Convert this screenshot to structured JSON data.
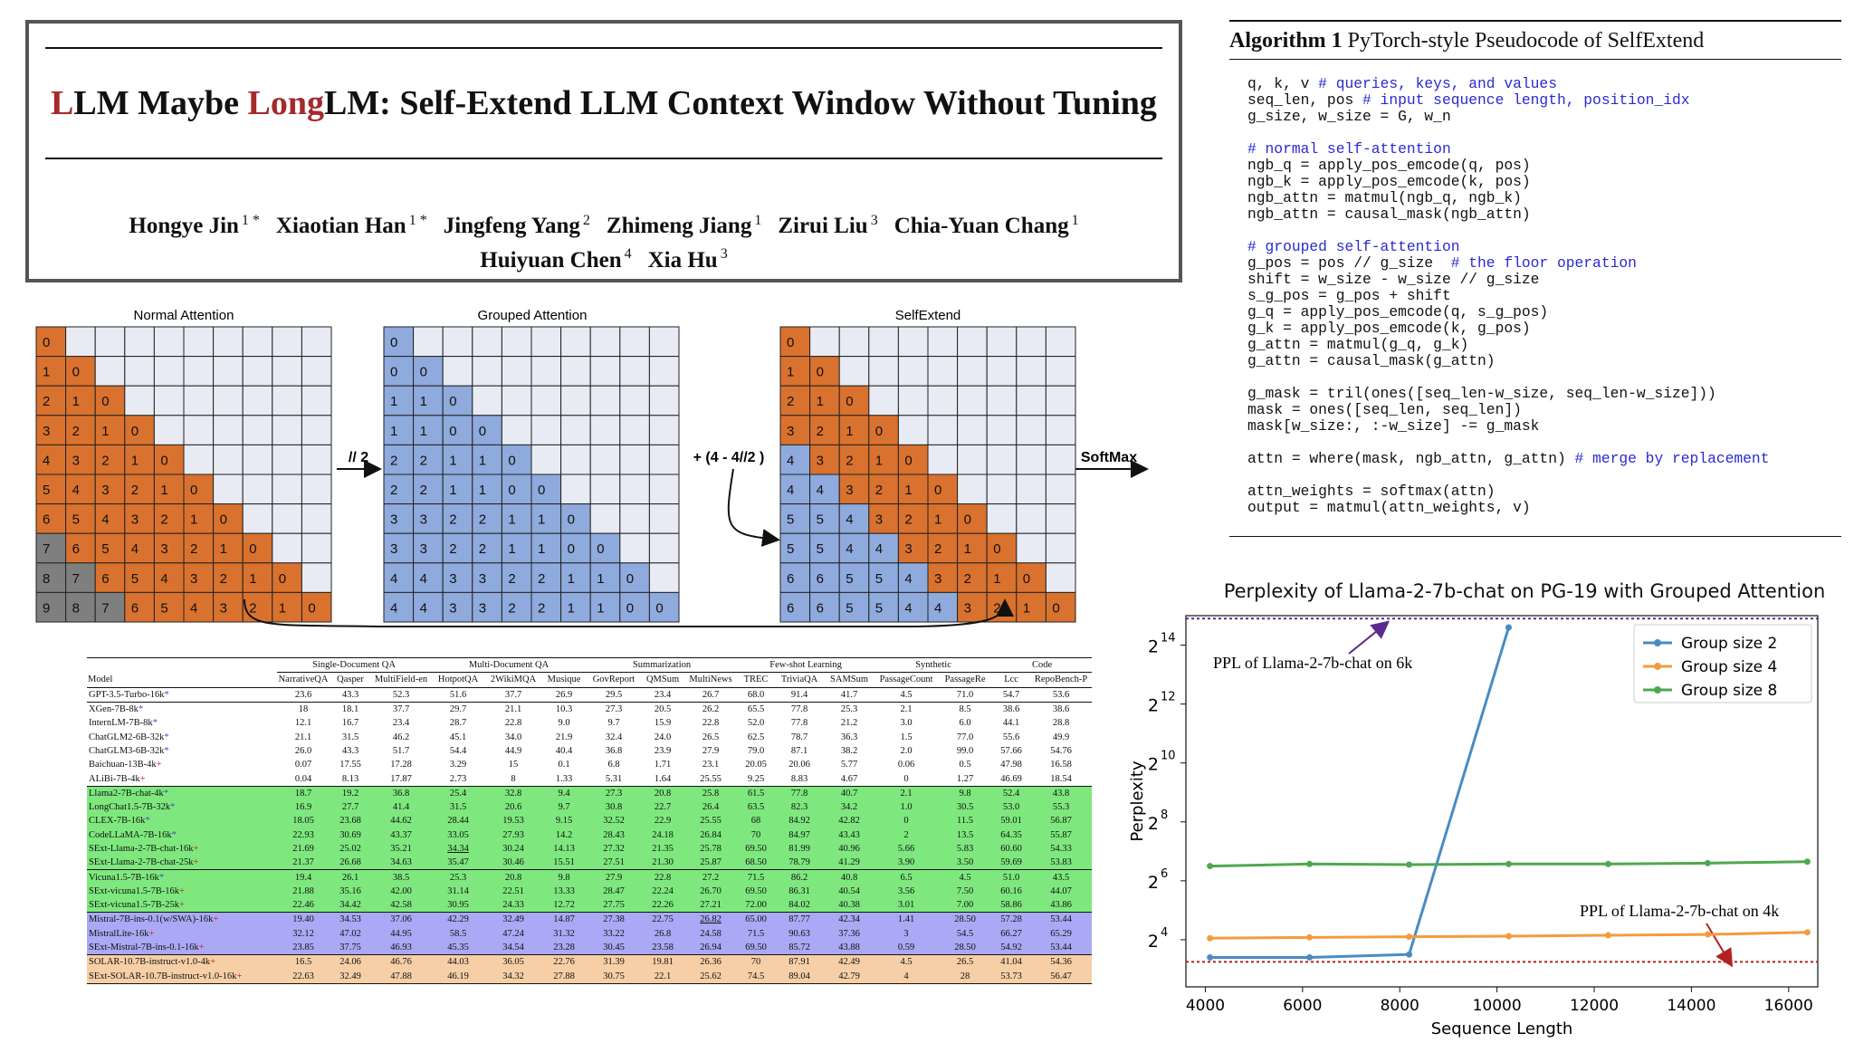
{
  "title": {
    "part1_red": "L",
    "part1": "LM Maybe ",
    "part2_red": "Long",
    "part2": "LM: Self-Extend LLM Context Window Without Tuning"
  },
  "authors": [
    {
      "name": "Hongye Jin",
      "aff": "1 *"
    },
    {
      "name": "Xiaotian Han",
      "aff": "1 *"
    },
    {
      "name": "Jingfeng Yang",
      "aff": "2"
    },
    {
      "name": "Zhimeng Jiang",
      "aff": "1"
    },
    {
      "name": "Zirui Liu",
      "aff": "3"
    },
    {
      "name": "Chia-Yuan Chang",
      "aff": "1"
    },
    {
      "name": "Huiyuan Chen",
      "aff": "4"
    },
    {
      "name": "Xia Hu",
      "aff": "3"
    }
  ],
  "attention": {
    "normal_title": "Normal Attention",
    "grouped_title": "Grouped Attention",
    "selfextend_title": "SelfExtend",
    "op_group": "// 2",
    "op_shift": "+ (4 - 4//2 )",
    "op_softmax": "SoftMax",
    "normal_matrix": [
      [
        "0"
      ],
      [
        "1",
        "0"
      ],
      [
        "2",
        "1",
        "0"
      ],
      [
        "3",
        "2",
        "1",
        "0"
      ],
      [
        "4",
        "3",
        "2",
        "1",
        "0"
      ],
      [
        "5",
        "4",
        "3",
        "2",
        "1",
        "0"
      ],
      [
        "6",
        "5",
        "4",
        "3",
        "2",
        "1",
        "0"
      ],
      [
        "7",
        "6",
        "5",
        "4",
        "3",
        "2",
        "1",
        "0"
      ],
      [
        "8",
        "7",
        "6",
        "5",
        "4",
        "3",
        "2",
        "1",
        "0"
      ],
      [
        "9",
        "8",
        "7",
        "6",
        "5",
        "4",
        "3",
        "2",
        "1",
        "0"
      ]
    ],
    "grouped_matrix": [
      [
        "0"
      ],
      [
        "0",
        "0"
      ],
      [
        "1",
        "1",
        "0"
      ],
      [
        "1",
        "1",
        "0",
        "0"
      ],
      [
        "2",
        "2",
        "1",
        "1",
        "0"
      ],
      [
        "2",
        "2",
        "1",
        "1",
        "0",
        "0"
      ],
      [
        "3",
        "3",
        "2",
        "2",
        "1",
        "1",
        "0"
      ],
      [
        "3",
        "3",
        "2",
        "2",
        "1",
        "1",
        "0",
        "0"
      ],
      [
        "4",
        "4",
        "3",
        "3",
        "2",
        "2",
        "1",
        "1",
        "0"
      ],
      [
        "4",
        "4",
        "3",
        "3",
        "2",
        "2",
        "1",
        "1",
        "0",
        "0"
      ]
    ],
    "selfextend_matrix": [
      [
        "0"
      ],
      [
        "1",
        "0"
      ],
      [
        "2",
        "1",
        "0"
      ],
      [
        "3",
        "2",
        "1",
        "0"
      ],
      [
        "4",
        "3",
        "2",
        "1",
        "0"
      ],
      [
        "4",
        "4",
        "3",
        "2",
        "1",
        "0"
      ],
      [
        "5",
        "5",
        "4",
        "3",
        "2",
        "1",
        "0"
      ],
      [
        "5",
        "5",
        "4",
        "4",
        "3",
        "2",
        "1",
        "0"
      ],
      [
        "6",
        "6",
        "5",
        "5",
        "4",
        "3",
        "2",
        "1",
        "0"
      ],
      [
        "6",
        "6",
        "5",
        "5",
        "4",
        "4",
        "3",
        "2",
        "1",
        "0"
      ]
    ],
    "colors": {
      "orange": "#d9722e",
      "blue": "#8faadc",
      "dark": "#7f7f7f",
      "empty": "#e8ebf4"
    }
  },
  "table": {
    "group_headers": [
      "Single-Document QA",
      "Multi-Document QA",
      "Summarization",
      "Few-shot Learning",
      "Synthetic",
      "Code"
    ],
    "columns": [
      "Model",
      "NarrativeQA",
      "Qasper",
      "MultiField-en",
      "HotpotQA",
      "2WikiMQA",
      "Musique",
      "GovReport",
      "QMSum",
      "MultiNews",
      "TREC",
      "TriviaQA",
      "SAMSum",
      "PassageCount",
      "PassageRe",
      "Lcc",
      "RepoBench-P"
    ],
    "rows": [
      {
        "model": "GPT-3.5-Turbo-16k",
        "mark": "*",
        "bg": "#ffffff",
        "sep": true,
        "cells": [
          "23.6",
          "43.3",
          "52.3",
          "51.6",
          "37.7",
          "26.9",
          "29.5",
          "23.4",
          "26.7",
          "68.0",
          "91.4",
          "41.7",
          "4.5",
          "71.0",
          "54.7",
          "53.6"
        ]
      },
      {
        "model": "XGen-7B-8k",
        "mark": "*",
        "bg": "#ffffff",
        "sep": true,
        "cells": [
          "18",
          "18.1",
          "37.7",
          "29.7",
          "21.1",
          "10.3",
          "27.3",
          "20.5",
          "26.2",
          "65.5",
          "77.8",
          "25.3",
          "2.1",
          "8.5",
          "38.6",
          "38.6"
        ]
      },
      {
        "model": "InternLM-7B-8k",
        "mark": "*",
        "bg": "#ffffff",
        "cells": [
          "12.1",
          "16.7",
          "23.4",
          "28.7",
          "22.8",
          "9.0",
          "9.7",
          "15.9",
          "22.8",
          "52.0",
          "77.8",
          "21.2",
          "3.0",
          "6.0",
          "44.1",
          "28.8"
        ]
      },
      {
        "model": "ChatGLM2-6B-32k",
        "mark": "*",
        "bg": "#ffffff",
        "cells": [
          "21.1",
          "31.5",
          "46.2",
          "45.1",
          "34.0",
          "21.9",
          "32.4",
          "24.0",
          "26.5",
          "62.5",
          "78.7",
          "36.3",
          "1.5",
          "77.0",
          "55.6",
          "49.9"
        ]
      },
      {
        "model": "ChatGLM3-6B-32k",
        "mark": "*",
        "bg": "#ffffff",
        "cells": [
          "26.0",
          "43.3",
          "51.7",
          "54.4",
          "44.9",
          "40.4",
          "36.8",
          "23.9",
          "27.9",
          "79.0",
          "87.1",
          "38.2",
          "2.0",
          "99.0",
          "57.66",
          "54.76"
        ]
      },
      {
        "model": "Baichuan-13B-4k",
        "mark": "+",
        "bg": "#ffffff",
        "cells": [
          "0.07",
          "17.55",
          "17.28",
          "3.29",
          "15",
          "0.1",
          "6.8",
          "1.71",
          "23.1",
          "20.05",
          "20.06",
          "5.77",
          "0.06",
          "0.5",
          "47.98",
          "16.58"
        ]
      },
      {
        "model": "ALiBi-7B-4k",
        "mark": "+",
        "bg": "#ffffff",
        "cells": [
          "0.04",
          "8.13",
          "17.87",
          "2.73",
          "8",
          "1.33",
          "5.31",
          "1.64",
          "25.55",
          "9.25",
          "8.83",
          "4.67",
          "0",
          "1.27",
          "46.69",
          "18.54"
        ]
      },
      {
        "model": "Llama2-7B-chat-4k",
        "mark": "*",
        "bg": "#7ee87e",
        "sep": true,
        "cells": [
          "18.7",
          "19.2",
          "36.8",
          "25.4",
          "32.8",
          "9.4",
          "27.3",
          "20.8",
          "25.8",
          "61.5",
          "77.8",
          "40.7",
          "2.1",
          "9.8",
          "52.4",
          "43.8"
        ]
      },
      {
        "model": "LongChat1.5-7B-32k",
        "mark": "*",
        "bg": "#7ee87e",
        "cells": [
          "16.9",
          "27.7",
          "41.4",
          "31.5",
          "20.6",
          "9.7",
          "30.8",
          "22.7",
          "26.4",
          "63.5",
          "82.3",
          "34.2",
          "1.0",
          "30.5",
          "53.0",
          "55.3"
        ]
      },
      {
        "model": "CLEX-7B-16k",
        "mark": "*",
        "bg": "#7ee87e",
        "cells": [
          "18.05",
          "23.68",
          "44.62",
          "28.44",
          "19.53",
          "9.15",
          "32.52",
          "22.9",
          "25.55",
          "68",
          "84.92",
          "42.82",
          "0",
          "11.5",
          "59.01",
          "56.87"
        ]
      },
      {
        "model": "CodeLLaMA-7B-16k",
        "mark": "*",
        "bg": "#7ee87e",
        "cells": [
          "22.93",
          "30.69",
          "43.37",
          "33.05",
          "27.93",
          "14.2",
          "28.43",
          "24.18",
          "26.84",
          "70",
          "84.97",
          "43.43",
          "2",
          "13.5",
          "64.35",
          "55.87"
        ]
      },
      {
        "model": "SExt-Llama-2-7B-chat-16k",
        "mark": "+",
        "bg": "#7ee87e",
        "cells": [
          "21.69",
          "25.02",
          "35.21",
          "34.34",
          "30.24",
          "14.13",
          "27.32",
          "21.35",
          "25.78",
          "69.50",
          "81.99",
          "40.96",
          "5.66",
          "5.83",
          "60.60",
          "54.33"
        ]
      },
      {
        "model": "SExt-Llama-2-7B-chat-25k",
        "mark": "+",
        "bg": "#7ee87e",
        "cells": [
          "21.37",
          "26.68",
          "34.63",
          "35.47",
          "30.46",
          "15.51",
          "27.51",
          "21.30",
          "25.87",
          "68.50",
          "78.79",
          "41.29",
          "3.90",
          "3.50",
          "59.69",
          "53.83"
        ]
      },
      {
        "model": "Vicuna1.5-7B-16k",
        "mark": "*",
        "bg": "#7ee87e",
        "sep": true,
        "cells": [
          "19.4",
          "26.1",
          "38.5",
          "25.3",
          "20.8",
          "9.8",
          "27.9",
          "22.8",
          "27.2",
          "71.5",
          "86.2",
          "40.8",
          "6.5",
          "4.5",
          "51.0",
          "43.5"
        ]
      },
      {
        "model": "SExt-vicuna1.5-7B-16k",
        "mark": "+",
        "bg": "#7ee87e",
        "cells": [
          "21.88",
          "35.16",
          "42.00",
          "31.14",
          "22.51",
          "13.33",
          "28.47",
          "22.24",
          "26.70",
          "69.50",
          "86.31",
          "40.54",
          "3.56",
          "7.50",
          "60.16",
          "44.07"
        ]
      },
      {
        "model": "SExt-vicuna1.5-7B-25k",
        "mark": "+",
        "bg": "#7ee87e",
        "cells": [
          "22.46",
          "34.42",
          "42.58",
          "30.95",
          "24.33",
          "12.72",
          "27.75",
          "22.26",
          "27.21",
          "72.00",
          "84.02",
          "40.38",
          "3.01",
          "7.00",
          "58.86",
          "43.86"
        ]
      },
      {
        "model": "Mistral-7B-ins-0.1(w/SWA)-16k",
        "mark": "+",
        "bg": "#a9a9f5",
        "sep": true,
        "cells": [
          "19.40",
          "34.53",
          "37.06",
          "42.29",
          "32.49",
          "14.87",
          "27.38",
          "22.75",
          "26.82",
          "65.00",
          "87.77",
          "42.34",
          "1.41",
          "28.50",
          "57.28",
          "53.44"
        ]
      },
      {
        "model": "MistralLite-16k",
        "mark": "+",
        "bg": "#a9a9f5",
        "cells": [
          "32.12",
          "47.02",
          "44.95",
          "58.5",
          "47.24",
          "31.32",
          "33.22",
          "26.8",
          "24.58",
          "71.5",
          "90.63",
          "37.36",
          "3",
          "54.5",
          "66.27",
          "65.29"
        ]
      },
      {
        "model": "SExt-Mistral-7B-ins-0.1-16k",
        "mark": "+",
        "bg": "#a9a9f5",
        "cells": [
          "23.85",
          "37.75",
          "46.93",
          "45.35",
          "34.54",
          "23.28",
          "30.45",
          "23.58",
          "26.94",
          "69.50",
          "85.72",
          "43.88",
          "0.59",
          "28.50",
          "54.92",
          "53.44"
        ]
      },
      {
        "model": "SOLAR-10.7B-instruct-v1.0-4k",
        "mark": "+",
        "bg": "#f7cfa6",
        "sep": true,
        "cells": [
          "16.5",
          "24.06",
          "46.76",
          "44.03",
          "36.05",
          "22.76",
          "31.39",
          "19.81",
          "26.36",
          "70",
          "87.91",
          "42.49",
          "4.5",
          "26.5",
          "41.04",
          "54.36"
        ]
      },
      {
        "model": "SExt-SOLAR-10.7B-instruct-v1.0-16k",
        "mark": "+",
        "bg": "#f7cfa6",
        "last": true,
        "cells": [
          "22.63",
          "32.49",
          "47.88",
          "46.19",
          "34.32",
          "27.88",
          "30.75",
          "22.1",
          "25.62",
          "74.5",
          "89.04",
          "42.79",
          "4",
          "28",
          "53.73",
          "56.47"
        ]
      }
    ]
  },
  "algorithm": {
    "label": "Algorithm 1",
    "title": "PyTorch-style Pseudocode of SelfExtend",
    "code_lines": [
      {
        "code": "q, k, v ",
        "comment": "# queries, keys, and values"
      },
      {
        "code": "seq_len, pos ",
        "comment": "# input sequence length, position_idx"
      },
      {
        "code": "g_size, w_size = G, w_n",
        "comment": ""
      },
      {
        "code": "",
        "comment": ""
      },
      {
        "code": "",
        "comment": "# normal self-attention"
      },
      {
        "code": "ngb_q = apply_pos_emcode(q, pos)",
        "comment": ""
      },
      {
        "code": "ngb_k = apply_pos_emcode(k, pos)",
        "comment": ""
      },
      {
        "code": "ngb_attn = matmul(ngb_q, ngb_k)",
        "comment": ""
      },
      {
        "code": "ngb_attn = causal_mask(ngb_attn)",
        "comment": ""
      },
      {
        "code": "",
        "comment": ""
      },
      {
        "code": "",
        "comment": "# grouped self-attention"
      },
      {
        "code": "g_pos = pos // g_size  ",
        "comment": "# the floor operation"
      },
      {
        "code": "shift = w_size - w_size // g_size",
        "comment": ""
      },
      {
        "code": "s_g_pos = g_pos + shift",
        "comment": ""
      },
      {
        "code": "g_q = apply_pos_emcode(q, s_g_pos)",
        "comment": ""
      },
      {
        "code": "g_k = apply_pos_emcode(k, g_pos)",
        "comment": ""
      },
      {
        "code": "g_attn = matmul(g_q, g_k)",
        "comment": ""
      },
      {
        "code": "g_attn = causal_mask(g_attn)",
        "comment": ""
      },
      {
        "code": "",
        "comment": ""
      },
      {
        "code": "g_mask = tril(ones([seq_len-w_size, seq_len-w_size]))",
        "comment": ""
      },
      {
        "code": "mask = ones([seq_len, seq_len])",
        "comment": ""
      },
      {
        "code": "mask[w_size:, :-w_size] -= g_mask",
        "comment": ""
      },
      {
        "code": "",
        "comment": ""
      },
      {
        "code": "attn = where(mask, ngb_attn, g_attn) ",
        "comment": "# merge by replacement"
      },
      {
        "code": "",
        "comment": ""
      },
      {
        "code": "attn_weights = softmax(attn)",
        "comment": ""
      },
      {
        "code": "output = matmul(attn_weights, v)",
        "comment": ""
      }
    ]
  },
  "chart_data": {
    "type": "line",
    "title": "Perplexity of Llama-2-7b-chat on PG-19 with Grouped Attention",
    "xlabel": "Sequence Length",
    "ylabel": "Perplexity",
    "y_scale": "log2",
    "xlim": [
      3600,
      16600
    ],
    "ylim_log2": [
      2.4,
      15.0
    ],
    "xticks": [
      4000,
      6000,
      8000,
      10000,
      12000,
      14000,
      16000
    ],
    "yticks_log2": [
      4,
      6,
      8,
      10,
      12,
      14
    ],
    "ytick_labels": [
      "2",
      "2",
      "2",
      "2",
      "2",
      "2"
    ],
    "ytick_exponents": [
      "4",
      "6",
      "8",
      "10",
      "12",
      "14"
    ],
    "legend_position": "top-right",
    "series": [
      {
        "name": "Group size 2",
        "color": "#4a8bc2",
        "x": [
          4096,
          6144,
          8192,
          10240
        ],
        "log2_y": [
          3.4,
          3.4,
          3.5,
          14.6
        ]
      },
      {
        "name": "Group size 4",
        "color": "#f39c3d",
        "x": [
          4096,
          6144,
          8192,
          10240,
          12288,
          14336,
          16384
        ],
        "log2_y": [
          4.05,
          4.08,
          4.1,
          4.12,
          4.15,
          4.18,
          4.25
        ]
      },
      {
        "name": "Group size 8",
        "color": "#4fa84f",
        "x": [
          4096,
          6144,
          8192,
          10240,
          12288,
          14336,
          16384
        ],
        "log2_y": [
          6.5,
          6.57,
          6.55,
          6.57,
          6.57,
          6.6,
          6.65
        ]
      }
    ],
    "reference_lines": [
      {
        "label": "PPL of Llama-2-7b-chat on 6k",
        "log2_y": 14.9,
        "color": "#5b2a8f"
      },
      {
        "label": "PPL of Llama-2-7b-chat on 4k",
        "log2_y": 3.25,
        "color": "#b22222"
      }
    ]
  }
}
